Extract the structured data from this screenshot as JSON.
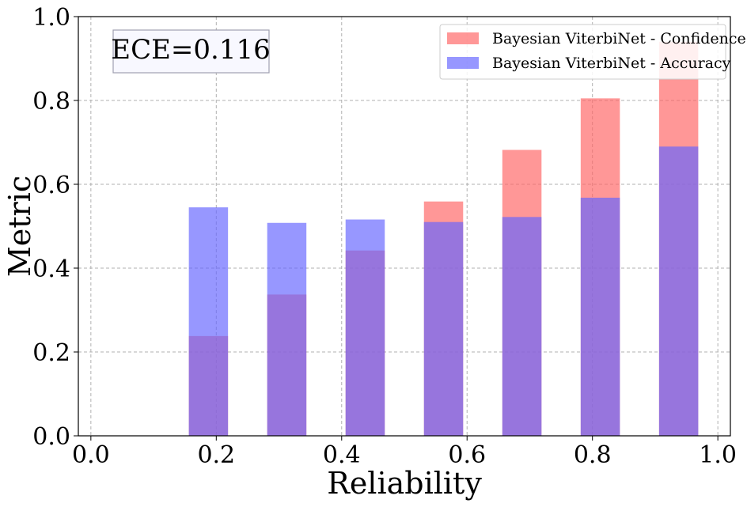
{
  "chart_data": {
    "type": "bar",
    "xlabel": "Reliability",
    "ylabel": "Metric",
    "xlim": [
      0,
      1
    ],
    "ylim": [
      0,
      1
    ],
    "grid": true,
    "legend_position": "top-right",
    "bar_width": 0.0625,
    "x": [
      0.1875,
      0.3125,
      0.4375,
      0.5625,
      0.6875,
      0.8125,
      0.9375
    ],
    "x_ticks": [
      "0.0",
      "0.2",
      "0.4",
      "0.6",
      "0.8",
      "1.0"
    ],
    "y_ticks": [
      "0.0",
      "0.2",
      "0.4",
      "0.6",
      "0.8",
      "1.0"
    ],
    "series": [
      {
        "name": "Bayesian ViterbiNet - Confidence",
        "color": "#ff6666",
        "values": [
          0.238,
          0.337,
          0.442,
          0.559,
          0.682,
          0.805,
          0.94
        ]
      },
      {
        "name": "Bayesian ViterbiNet - Accuracy",
        "color": "#6666ff",
        "values": [
          0.545,
          0.508,
          0.516,
          0.51,
          0.522,
          0.568,
          0.69
        ]
      }
    ],
    "annotation": "ECE=0.116"
  }
}
